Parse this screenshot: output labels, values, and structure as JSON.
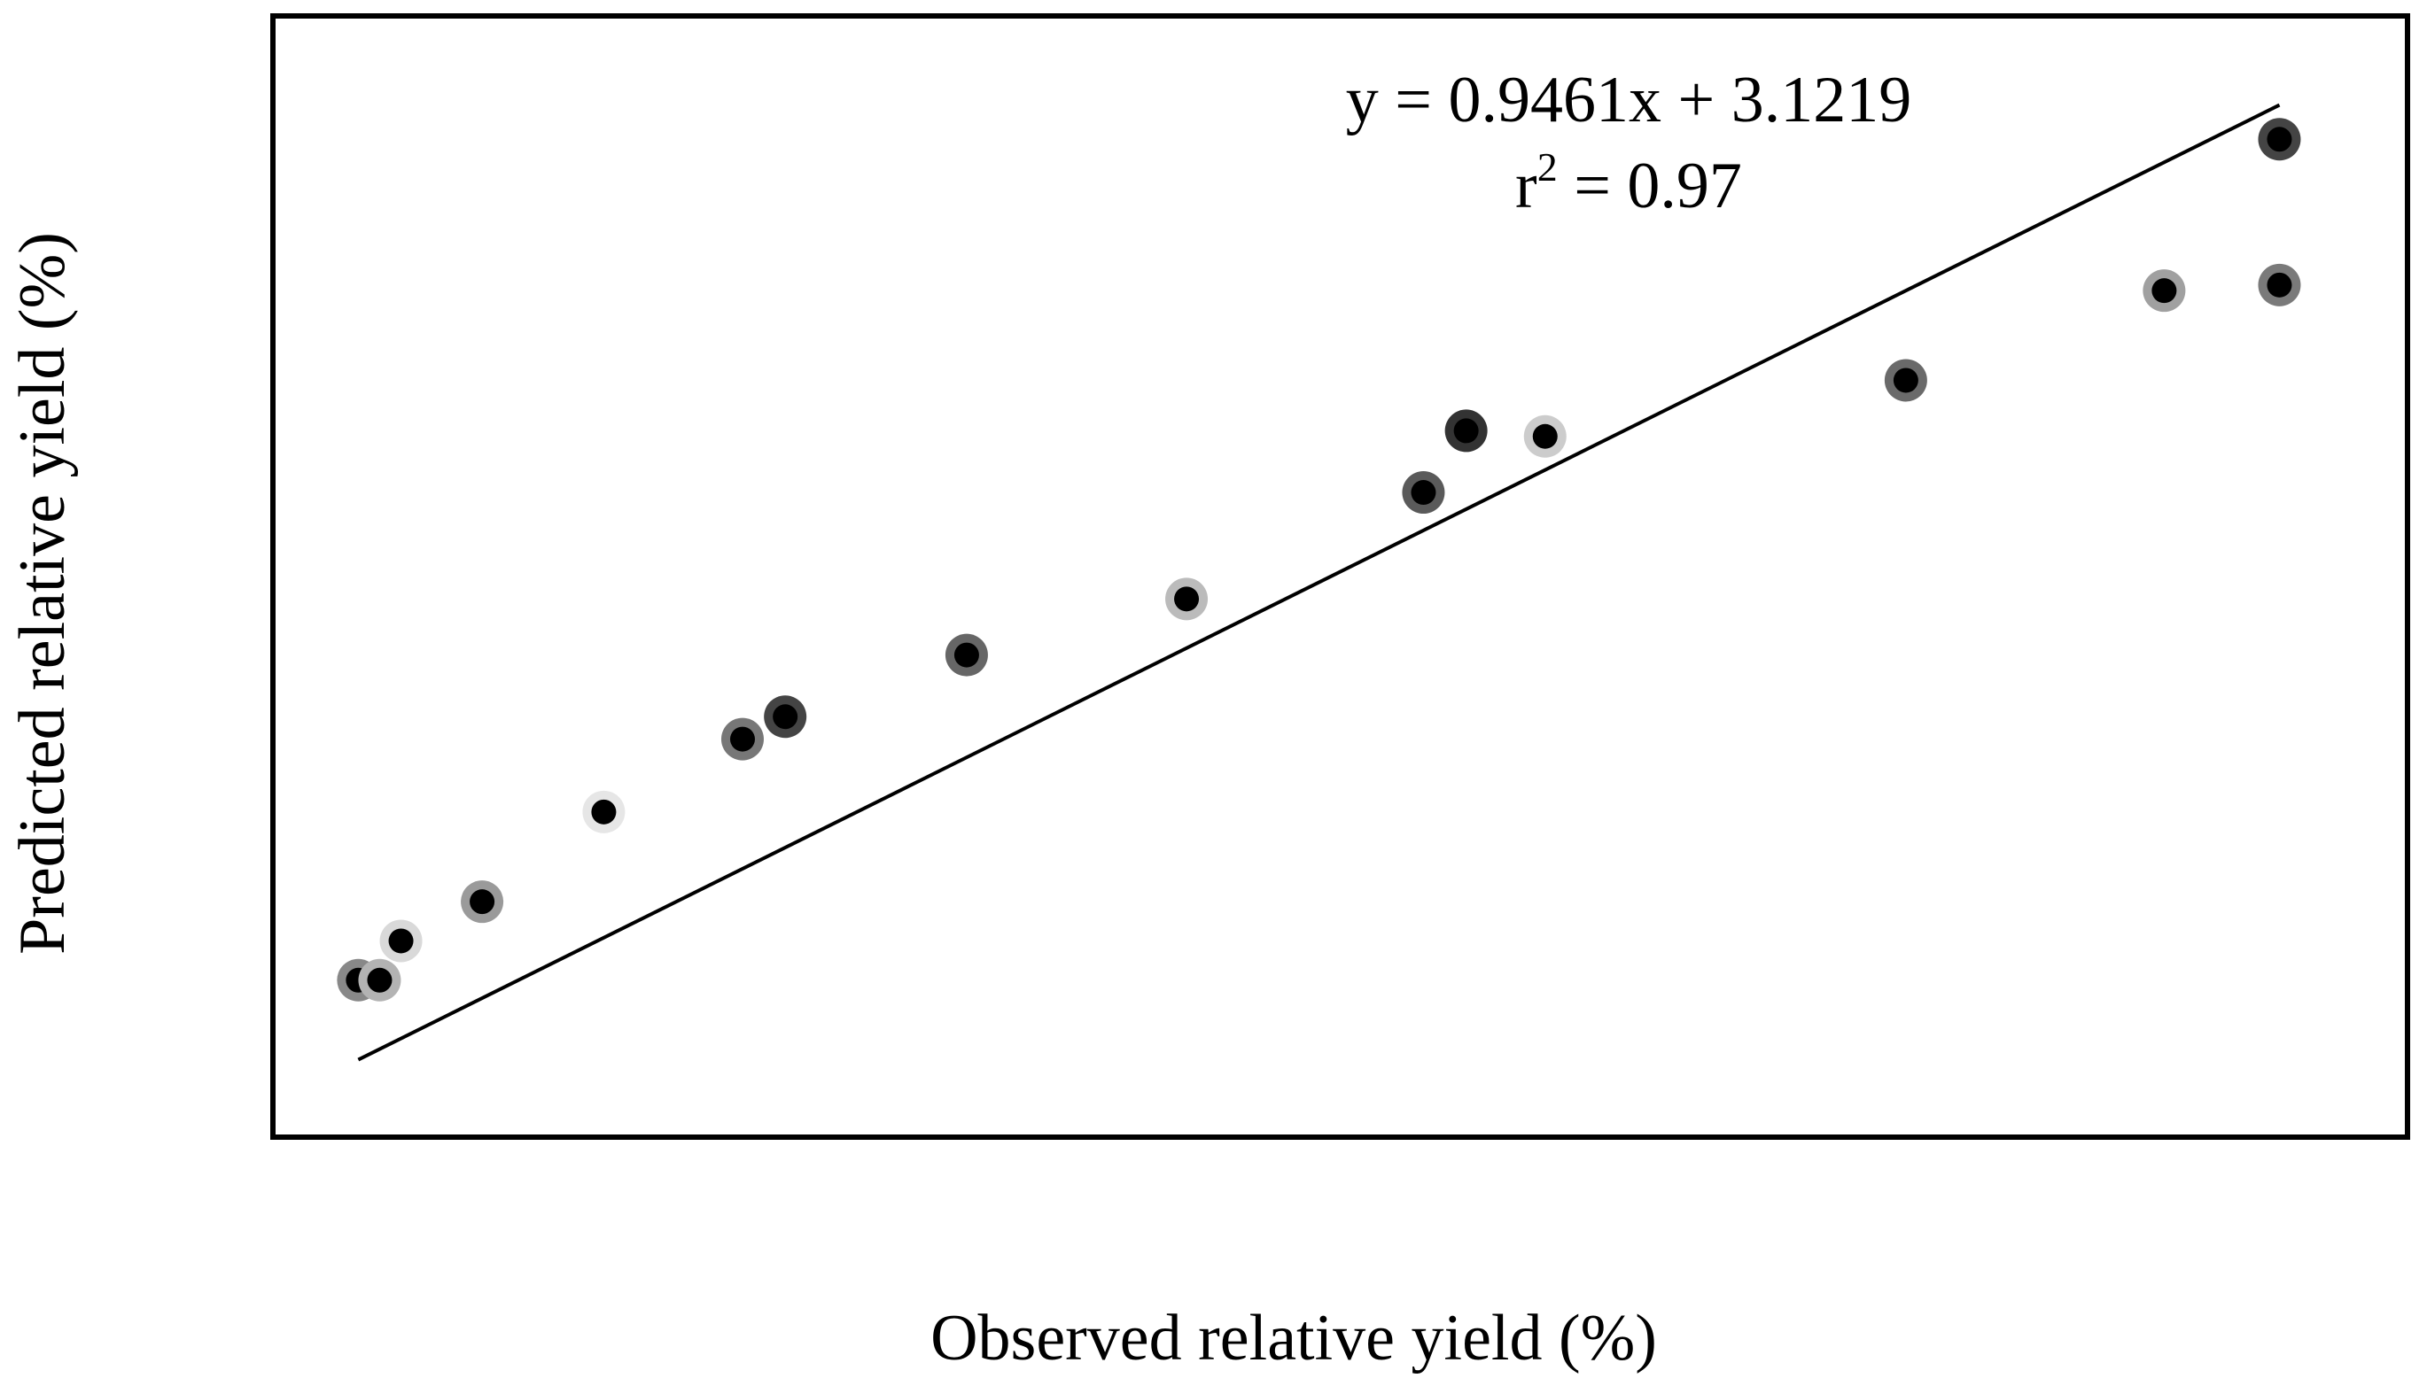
{
  "chart_data": {
    "type": "scatter",
    "title": "",
    "xlabel": "Observed relative yield (%)",
    "ylabel": "Predicted relative yield (%)",
    "xlim": [
      0,
      100
    ],
    "ylim": [
      0,
      100
    ],
    "grid": false,
    "show_tick_labels": false,
    "annotation": {
      "equation": "y = 0.9461x + 3.1219",
      "r2_prefix": "r",
      "r2_exponent": "2",
      "r2_suffix": " = 0.97"
    },
    "regression": {
      "slope": 0.9461,
      "intercept": 3.1219,
      "x_range": [
        4,
        94
      ]
    },
    "points": [
      {
        "x": 4.0,
        "y": 14.0,
        "halo": "#888888"
      },
      {
        "x": 5.0,
        "y": 14.0,
        "halo": "#b3b3b3"
      },
      {
        "x": 6.0,
        "y": 17.5,
        "halo": "#d9d9d9"
      },
      {
        "x": 9.8,
        "y": 21.0,
        "halo": "#9a9a9a"
      },
      {
        "x": 15.5,
        "y": 29.0,
        "halo": "#e6e6e6"
      },
      {
        "x": 22.0,
        "y": 35.5,
        "halo": "#777777"
      },
      {
        "x": 24.0,
        "y": 37.5,
        "halo": "#444444"
      },
      {
        "x": 32.5,
        "y": 43.0,
        "halo": "#666666"
      },
      {
        "x": 42.8,
        "y": 48.0,
        "halo": "#bbbbbb"
      },
      {
        "x": 53.9,
        "y": 57.5,
        "halo": "#5a5a5a"
      },
      {
        "x": 55.9,
        "y": 63.0,
        "halo": "#333333"
      },
      {
        "x": 59.6,
        "y": 62.5,
        "halo": "#cccccc"
      },
      {
        "x": 76.5,
        "y": 67.5,
        "halo": "#6a6a6a"
      },
      {
        "x": 88.6,
        "y": 75.5,
        "halo": "#a0a0a0"
      },
      {
        "x": 94.0,
        "y": 76.0,
        "halo": "#7a7a7a"
      },
      {
        "x": 94.0,
        "y": 89.0,
        "halo": "#444444"
      }
    ]
  }
}
